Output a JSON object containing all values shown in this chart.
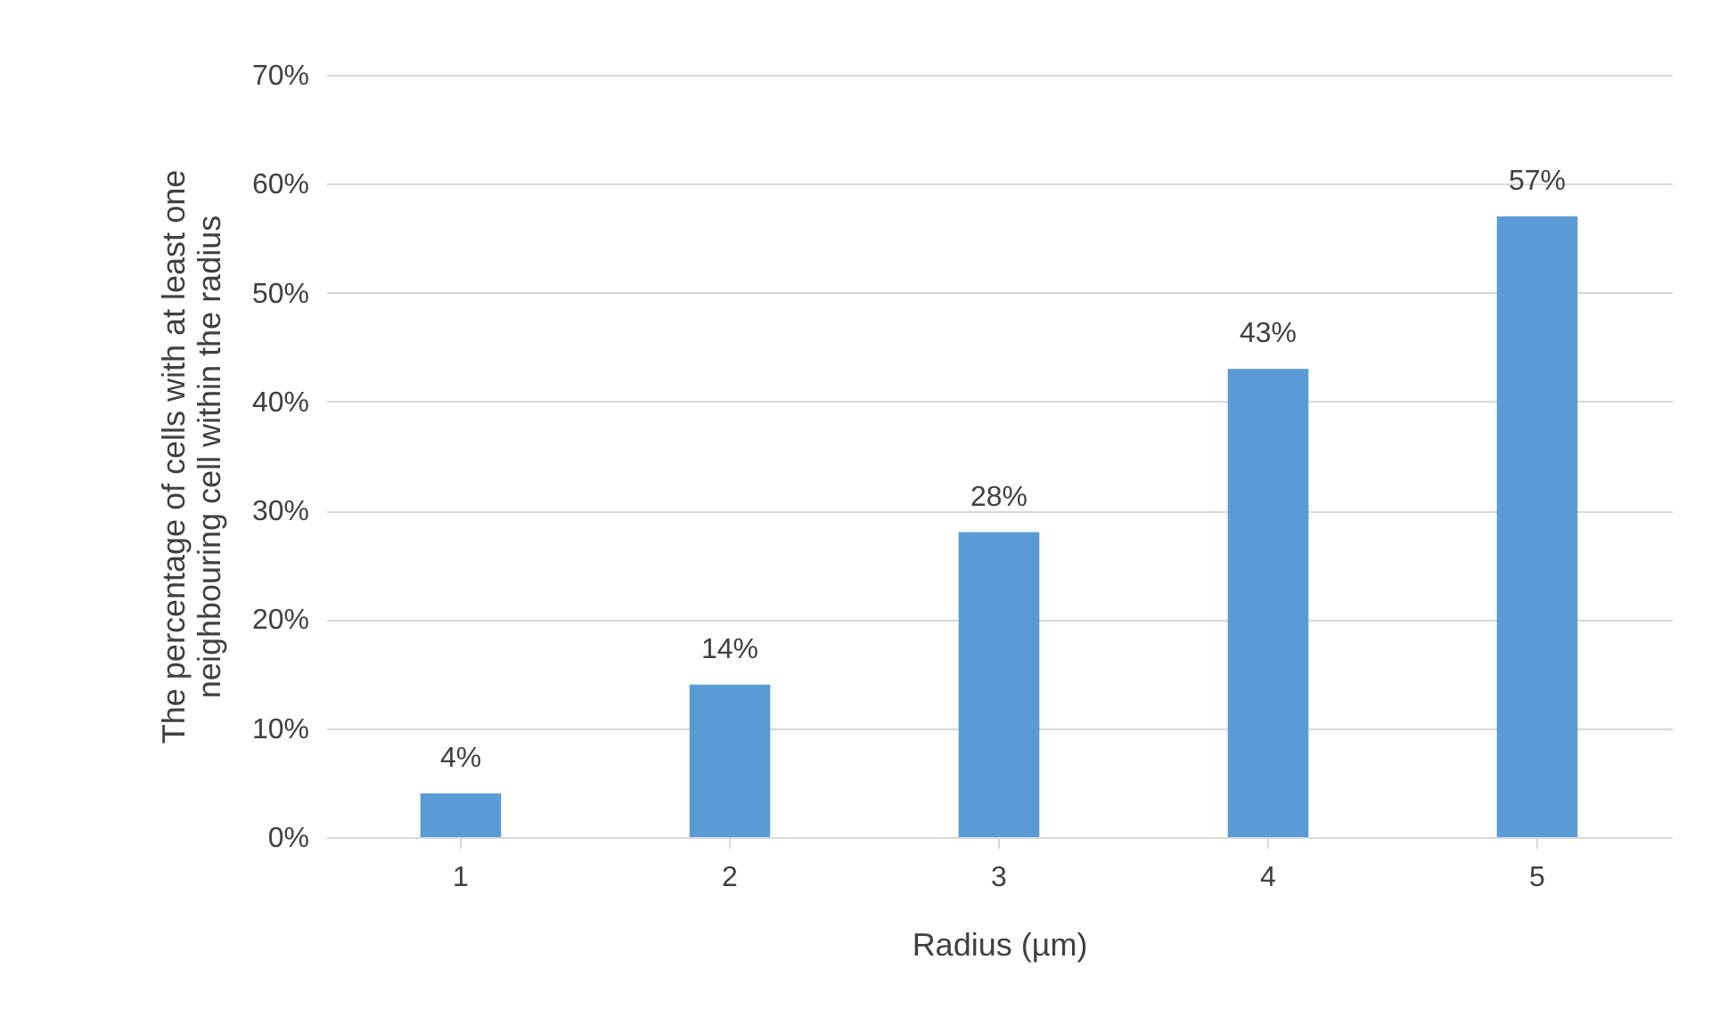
{
  "chart_data": {
    "type": "bar",
    "xlabel": "Radius (µm)",
    "ylabel": "The percentage of cells with at least one neighbouring cell within the radius",
    "categories": [
      "1",
      "2",
      "3",
      "4",
      "5"
    ],
    "values": [
      4,
      14,
      28,
      43,
      57
    ],
    "value_labels": [
      "4%",
      "14%",
      "28%",
      "43%",
      "57%"
    ],
    "color": "#5b9bd5",
    "ylim": [
      0,
      70
    ],
    "yticks": [
      {
        "value": 0,
        "label": "0%"
      },
      {
        "value": 10,
        "label": "10%"
      },
      {
        "value": 20,
        "label": "20%"
      },
      {
        "value": 30,
        "label": "30%"
      },
      {
        "value": 40,
        "label": "40%"
      },
      {
        "value": 50,
        "label": "50%"
      },
      {
        "value": 60,
        "label": "60%"
      },
      {
        "value": 70,
        "label": "70%"
      }
    ],
    "grid": true
  }
}
